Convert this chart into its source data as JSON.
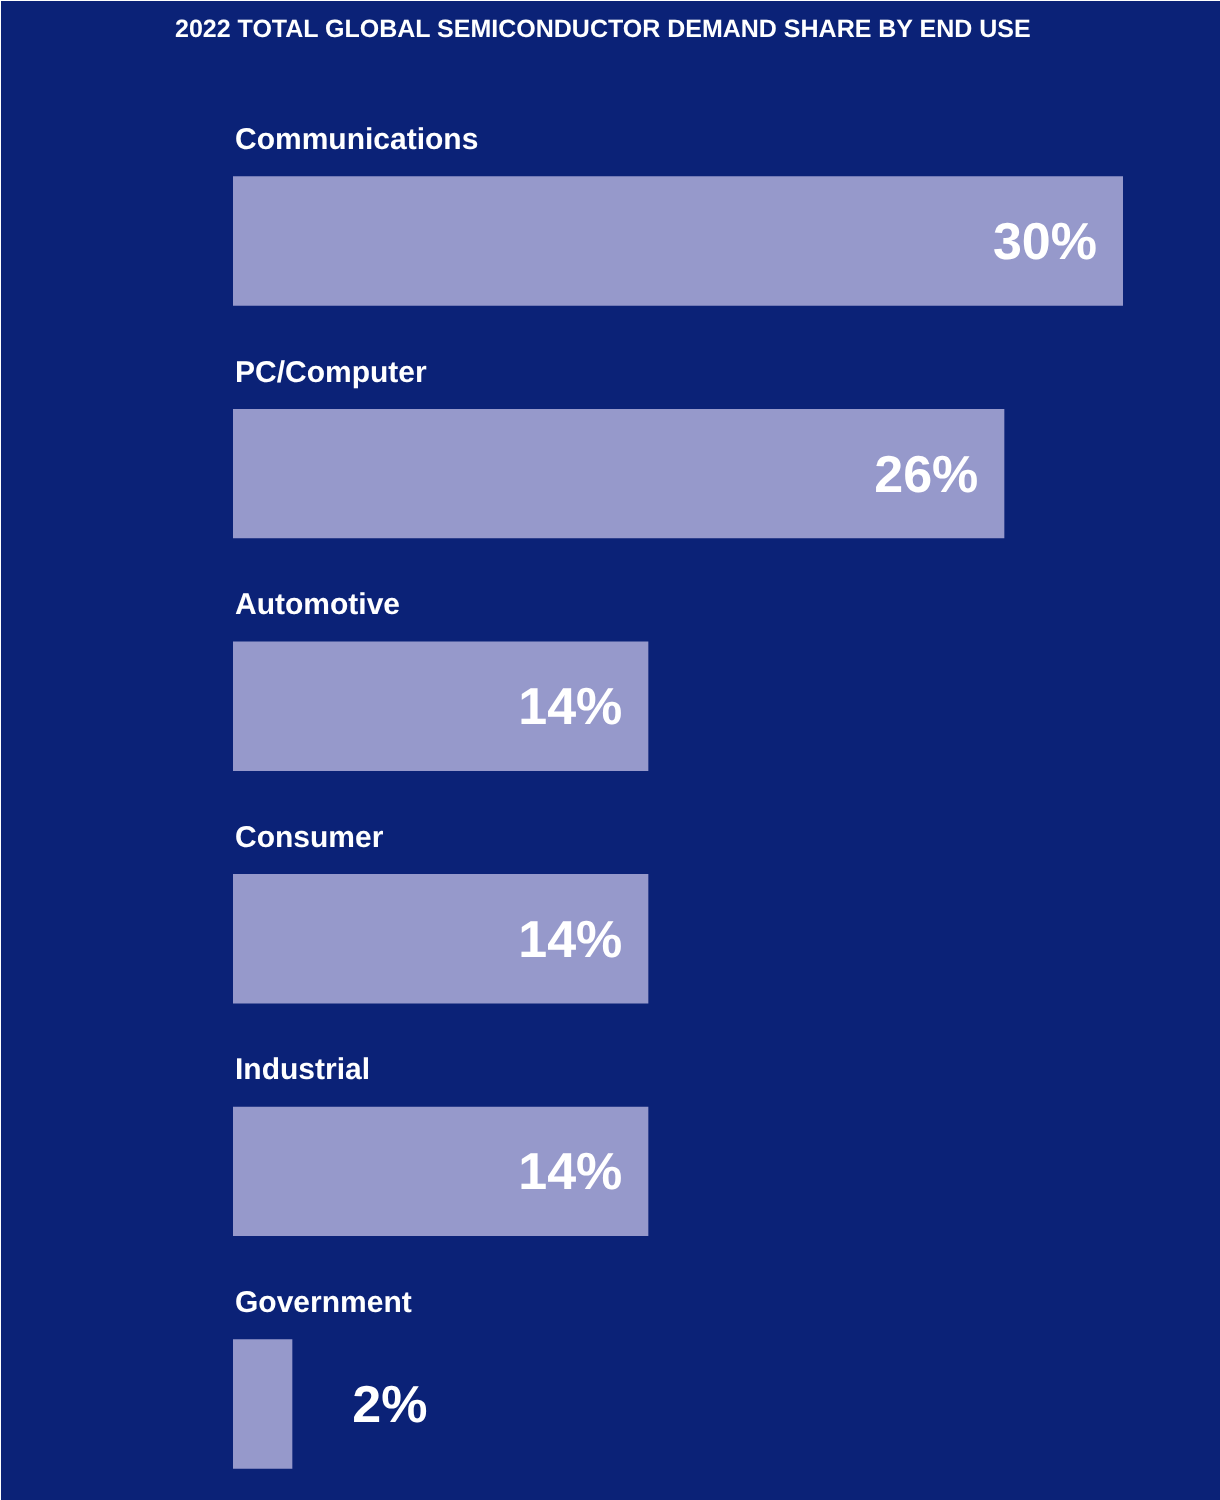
{
  "chart_data": {
    "type": "bar",
    "orientation": "horizontal",
    "title": "2022 TOTAL GLOBAL SEMICONDUCTOR DEMAND SHARE BY END USE",
    "categories": [
      "Communications",
      "PC/Computer",
      "Automotive",
      "Consumer",
      "Industrial",
      "Government"
    ],
    "values": [
      30,
      26,
      14,
      14,
      14,
      2
    ],
    "value_labels": [
      "30%",
      "26%",
      "14%",
      "14%",
      "14%",
      "2%"
    ],
    "color": "#9699cb"
  }
}
